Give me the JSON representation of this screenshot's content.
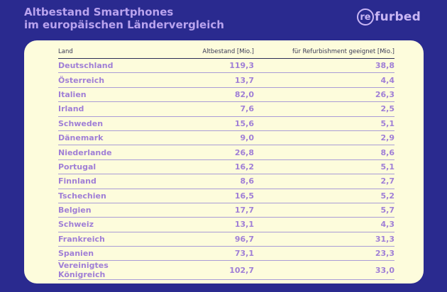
{
  "header": {
    "title_line1": "Altbestand Smartphones",
    "title_line2": "im europäischen Ländervergleich"
  },
  "logo": {
    "circle_text": "re",
    "text": "furbed"
  },
  "table": {
    "columns": [
      "Land",
      "Altbestand [Mio.]",
      "für Refurbishment geeignet [Mio.]"
    ],
    "rows": [
      [
        "Deutschland",
        "119,3",
        "38,8"
      ],
      [
        "Österreich",
        "13,7",
        "4,4"
      ],
      [
        "Italien",
        "82,0",
        "26,3"
      ],
      [
        "Irland",
        "7,6",
        "2,5"
      ],
      [
        "Schweden",
        "15,6",
        "5,1"
      ],
      [
        "Dänemark",
        "9,0",
        "2,9"
      ],
      [
        "Niederlande",
        "26,8",
        "8,6"
      ],
      [
        "Portugal",
        "16,2",
        "5,1"
      ],
      [
        "Finnland",
        "8,6",
        "2,7"
      ],
      [
        "Tschechien",
        "16,5",
        "5,2"
      ],
      [
        "Belgien",
        "17,7",
        "5,7"
      ],
      [
        "Schweiz",
        "13,1",
        "4,3"
      ],
      [
        "Frankreich",
        "96,7",
        "31,3"
      ],
      [
        "Spanien",
        "73,1",
        "23,3"
      ],
      [
        "Vereinigtes Königreich",
        "102,7",
        "33,0"
      ]
    ]
  },
  "colors": {
    "background": "#2a2a8f",
    "card": "#fdfcdc",
    "accent": "#a07fd6",
    "title": "#b9a3ee"
  }
}
